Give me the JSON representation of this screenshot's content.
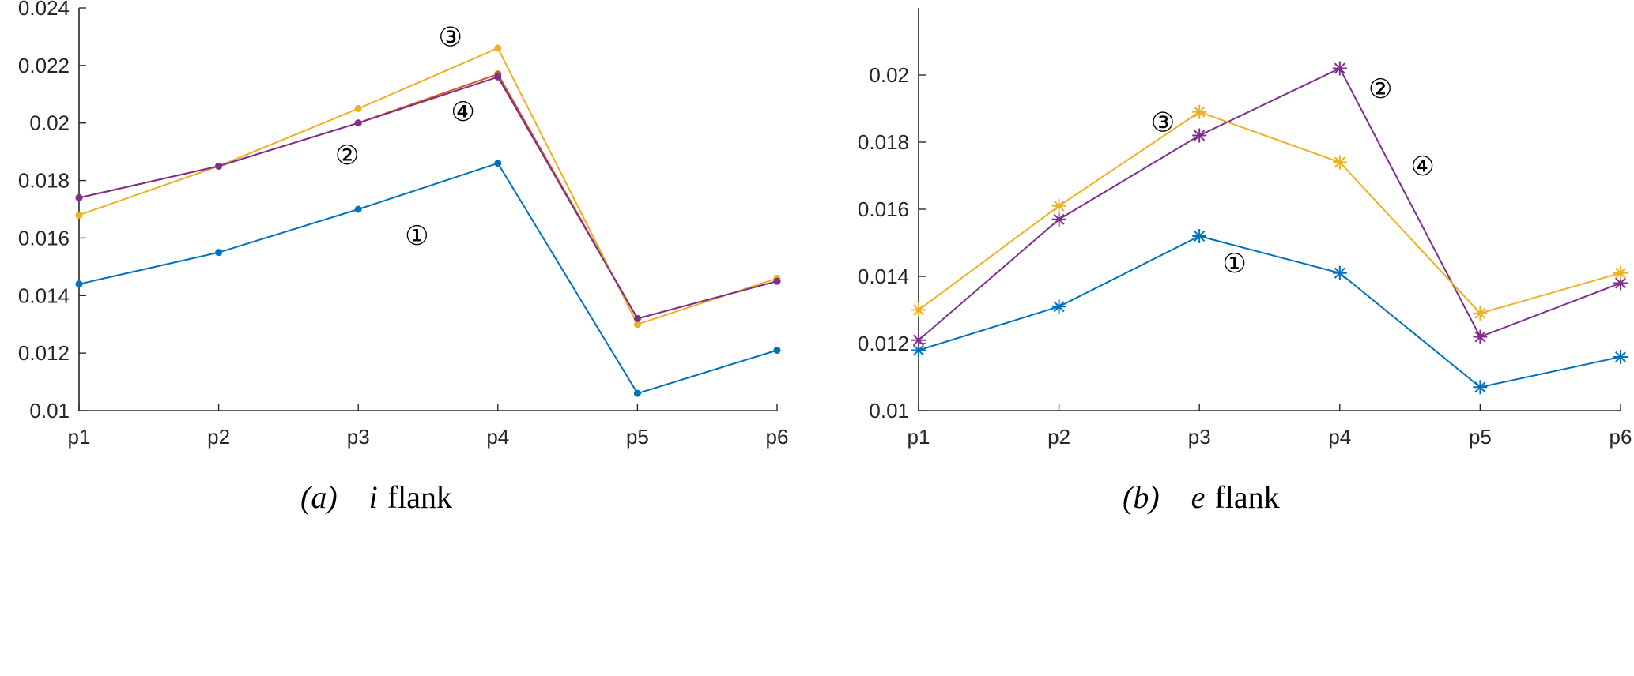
{
  "chart_data": [
    {
      "type": "line",
      "caption": {
        "label": "(a)",
        "text_italic": "i",
        "text": "flank"
      },
      "categories": [
        "p1",
        "p2",
        "p3",
        "p4",
        "p5",
        "p6"
      ],
      "ylim": [
        0.01,
        0.024
      ],
      "yticks": [
        0.01,
        0.012,
        0.014,
        0.016,
        0.018,
        0.02,
        0.022,
        0.024
      ],
      "ytick_labels": [
        "0.01",
        "0.012",
        "0.014",
        "0.016",
        "0.018",
        "0.02",
        "0.022",
        "0.024"
      ],
      "marker": "dot",
      "series": [
        {
          "id": "s1",
          "color": "#0072BD",
          "values": [
            0.0144,
            0.0155,
            0.017,
            0.0186,
            0.0106,
            0.0121
          ]
        },
        {
          "id": "s2",
          "color": "#D95319",
          "values": [
            0.0174,
            0.0185,
            0.02,
            0.0217,
            0.0132,
            0.0145
          ]
        },
        {
          "id": "s3",
          "color": "#EDB120",
          "values": [
            0.0168,
            0.0185,
            0.0205,
            0.0226,
            0.013,
            0.0146
          ]
        },
        {
          "id": "s4",
          "color": "#7E2F8E",
          "values": [
            0.0174,
            0.0185,
            0.02,
            0.0216,
            0.0132,
            0.0145
          ]
        }
      ],
      "annotations": [
        {
          "text": "①",
          "x": 3.42,
          "y": 0.0161
        },
        {
          "text": "②",
          "x": 2.92,
          "y": 0.0189
        },
        {
          "text": "③",
          "x": 3.66,
          "y": 0.023
        },
        {
          "text": "④",
          "x": 3.75,
          "y": 0.0204
        }
      ]
    },
    {
      "type": "line",
      "caption": {
        "label": "(b)",
        "text_italic": "e",
        "text": "flank"
      },
      "categories": [
        "p1",
        "p2",
        "p3",
        "p4",
        "p5",
        "p6"
      ],
      "ylim": [
        0.01,
        0.022
      ],
      "yticks": [
        0.01,
        0.012,
        0.014,
        0.016,
        0.018,
        0.02
      ],
      "ytick_labels": [
        "0.01",
        "0.012",
        "0.014",
        "0.016",
        "0.018",
        "0.02"
      ],
      "marker": "asterisk",
      "series": [
        {
          "id": "s1",
          "color": "#0072BD",
          "values": [
            0.0118,
            0.0131,
            0.0152,
            0.0141,
            0.0107,
            0.0116
          ]
        },
        {
          "id": "s2",
          "color": "#7E2F8E",
          "values": [
            0.0121,
            0.0157,
            0.0182,
            0.0202,
            0.0122,
            0.0138
          ]
        },
        {
          "id": "s3",
          "color": "#EDB120",
          "values": [
            0.013,
            0.0161,
            0.0189,
            0.0174,
            0.0129,
            0.0141
          ]
        }
      ],
      "annotations": [
        {
          "text": "①",
          "x": 3.25,
          "y": 0.0144
        },
        {
          "text": "②",
          "x": 4.29,
          "y": 0.0196
        },
        {
          "text": "③",
          "x": 2.74,
          "y": 0.0186
        },
        {
          "text": "④",
          "x": 4.59,
          "y": 0.0173
        }
      ]
    }
  ]
}
